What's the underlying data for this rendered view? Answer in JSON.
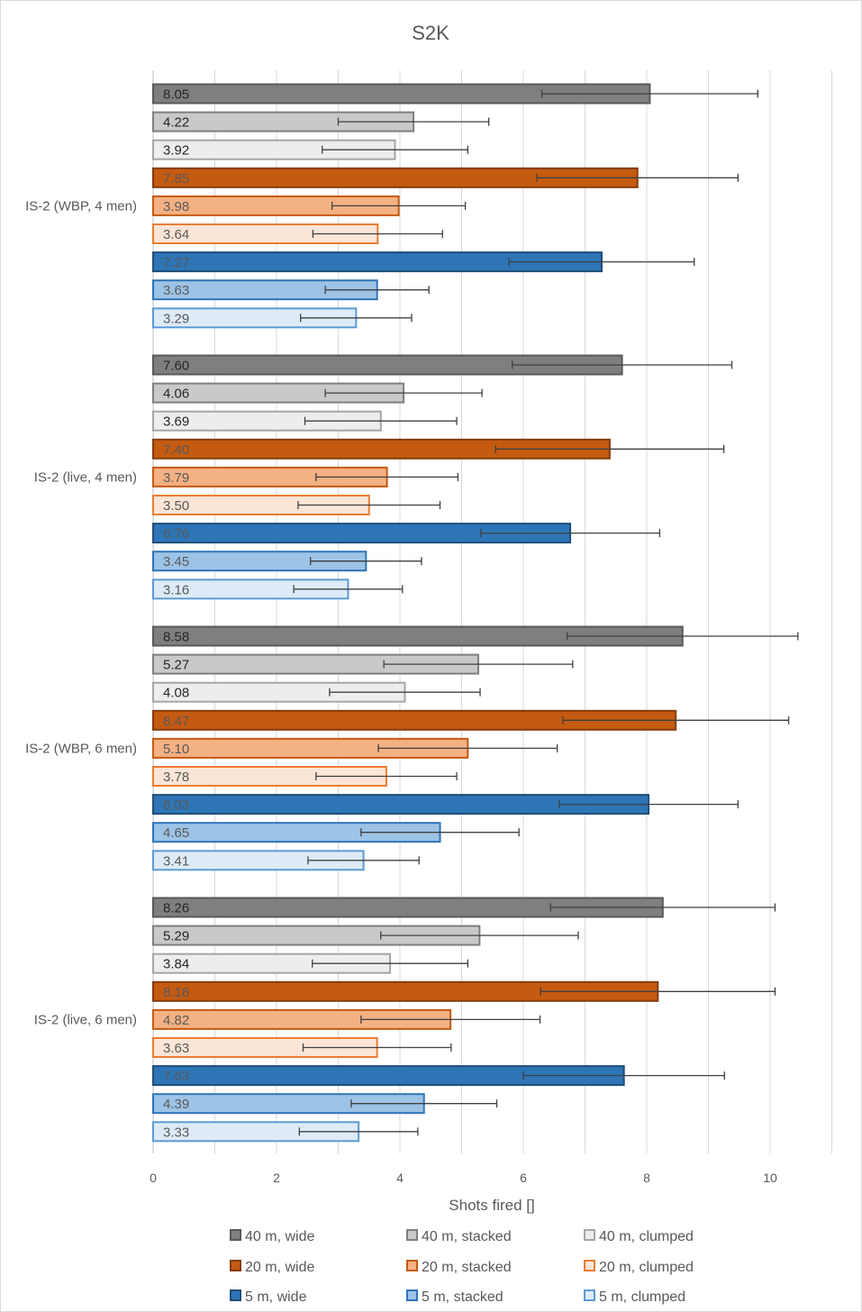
{
  "chart_data": {
    "type": "bar",
    "orientation": "horizontal",
    "title": "S2K",
    "xlabel": "Shots fired []",
    "ylabel": "",
    "xlim": [
      0,
      11
    ],
    "xticks": [
      0,
      2,
      4,
      6,
      8,
      10
    ],
    "grid": true,
    "legend_position": "bottom",
    "categories": [
      "IS-2 (WBP, 4 men)",
      "IS-2 (live, 4 men)",
      "IS-2 (WBP, 6 men)",
      "IS-2 (live, 6 men)"
    ],
    "series": [
      {
        "name": "40 m, wide",
        "fill": "#7f7f7f",
        "stroke": "#595959",
        "values": [
          8.05,
          7.6,
          8.58,
          8.26
        ],
        "error": [
          1.75,
          1.78,
          1.87,
          1.82
        ]
      },
      {
        "name": "40 m, stacked",
        "fill": "#c9c9c9",
        "stroke": "#7f7f7f",
        "values": [
          4.22,
          4.06,
          5.27,
          5.29
        ],
        "error": [
          1.22,
          1.27,
          1.53,
          1.6
        ]
      },
      {
        "name": "40 m, clumped",
        "fill": "#ededed",
        "stroke": "#a5a5a5",
        "values": [
          3.92,
          3.69,
          4.08,
          3.84
        ],
        "error": [
          1.18,
          1.23,
          1.22,
          1.26
        ]
      },
      {
        "name": "20 m, wide",
        "fill": "#c55a11",
        "stroke": "#843c0c",
        "values": [
          7.85,
          7.4,
          8.47,
          8.18
        ],
        "error": [
          1.63,
          1.85,
          1.83,
          1.9
        ]
      },
      {
        "name": "20 m, stacked",
        "fill": "#f4b183",
        "stroke": "#c55a11",
        "values": [
          3.98,
          3.79,
          5.1,
          4.82
        ],
        "error": [
          1.08,
          1.15,
          1.45,
          1.45
        ]
      },
      {
        "name": "20 m, clumped",
        "fill": "#fbe5d6",
        "stroke": "#ed7d31",
        "values": [
          3.64,
          3.5,
          3.78,
          3.63
        ],
        "error": [
          1.05,
          1.15,
          1.14,
          1.2
        ]
      },
      {
        "name": "5 m, wide",
        "fill": "#2e75b6",
        "stroke": "#1f4e79",
        "values": [
          7.27,
          6.76,
          8.03,
          7.63
        ],
        "error": [
          1.5,
          1.45,
          1.45,
          1.63
        ]
      },
      {
        "name": "5 m, stacked",
        "fill": "#9dc3e6",
        "stroke": "#2e75b6",
        "values": [
          3.63,
          3.45,
          4.65,
          4.39
        ],
        "error": [
          0.84,
          0.9,
          1.28,
          1.18
        ]
      },
      {
        "name": "5 m, clumped",
        "fill": "#deebf7",
        "stroke": "#5b9bd5",
        "values": [
          3.29,
          3.16,
          3.41,
          3.33
        ],
        "error": [
          0.9,
          0.88,
          0.9,
          0.96
        ]
      }
    ],
    "label_colors": {
      "40 m, wide": "#262626",
      "40 m, stacked": "#262626",
      "40 m, clumped": "#262626",
      "20 m, wide": "#595959",
      "20 m, stacked": "#595959",
      "20 m, clumped": "#595959",
      "5 m, wide": "#595959",
      "5 m, stacked": "#595959",
      "5 m, clumped": "#595959"
    },
    "colors": {
      "axis": "#bfbfbf",
      "grid": "#d9d9d9",
      "error_bar": "#404040",
      "text": "#595959"
    }
  }
}
